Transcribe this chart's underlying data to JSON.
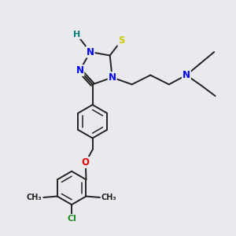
{
  "bg_color": "#e8eaed",
  "atom_colors": {
    "N": "#0000ee",
    "S": "#cccc00",
    "O": "#ee0000",
    "Cl": "#228B22",
    "C": "#222222",
    "H": "#008080"
  },
  "bond_color": "#222222",
  "font_size": 8.5,
  "fig_size": [
    3.0,
    3.0
  ]
}
